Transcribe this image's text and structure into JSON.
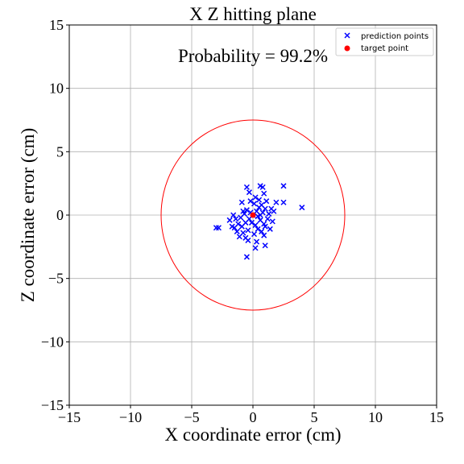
{
  "chart_data": {
    "type": "scatter",
    "title": "X Z hitting plane",
    "xlabel": "X coordinate error (cm)",
    "ylabel": "Z coordinate error (cm)",
    "xlim": [
      -15,
      15
    ],
    "ylim": [
      -15,
      15
    ],
    "xticks": [
      -15,
      -10,
      -5,
      0,
      5,
      10,
      15
    ],
    "yticks": [
      -15,
      -10,
      -5,
      0,
      5,
      10,
      15
    ],
    "xtick_labels": [
      "−15",
      "−10",
      "−5",
      "0",
      "5",
      "10",
      "15"
    ],
    "ytick_labels": [
      "−15",
      "−10",
      "−5",
      "0",
      "5",
      "10",
      "15"
    ],
    "grid": true,
    "legend_position": "top-right",
    "annotation": "Probability = 99.2%",
    "circle": {
      "center": [
        0,
        0
      ],
      "radius": 7.5,
      "color": "#ff0000"
    },
    "series": [
      {
        "name": "prediction points",
        "marker": "x",
        "color": "#0000ff",
        "points": [
          [
            2.5,
            2.3
          ],
          [
            0.6,
            2.3
          ],
          [
            0.8,
            2.2
          ],
          [
            -0.5,
            2.2
          ],
          [
            -0.3,
            1.8
          ],
          [
            0.9,
            1.7
          ],
          [
            0.2,
            1.4
          ],
          [
            0.5,
            1.2
          ],
          [
            1.1,
            1.1
          ],
          [
            -0.9,
            1.0
          ],
          [
            2.5,
            1.0
          ],
          [
            1.9,
            1.0
          ],
          [
            0.1,
            0.9
          ],
          [
            0.7,
            0.8
          ],
          [
            4.0,
            0.6
          ],
          [
            1.5,
            0.5
          ],
          [
            1.0,
            0.5
          ],
          [
            -0.5,
            0.4
          ],
          [
            0.3,
            0.3
          ],
          [
            -0.2,
            0.2
          ],
          [
            0.8,
            0.2
          ],
          [
            1.3,
            0.1
          ],
          [
            -0.7,
            0.1
          ],
          [
            0.0,
            0.0
          ],
          [
            0.4,
            -0.1
          ],
          [
            -1.0,
            -0.2
          ],
          [
            1.2,
            -0.3
          ],
          [
            -1.4,
            -0.3
          ],
          [
            -0.3,
            -0.3
          ],
          [
            0.6,
            -0.4
          ],
          [
            1.6,
            -0.5
          ],
          [
            -1.9,
            -0.4
          ],
          [
            -0.6,
            -0.6
          ],
          [
            0.9,
            -0.7
          ],
          [
            -1.2,
            -0.7
          ],
          [
            0.2,
            -0.8
          ],
          [
            1.0,
            -0.9
          ],
          [
            -0.9,
            -0.9
          ],
          [
            -1.7,
            -0.9
          ],
          [
            -2.8,
            -1.0
          ],
          [
            -3.0,
            -1.0
          ],
          [
            0.4,
            -1.1
          ],
          [
            -0.4,
            -1.2
          ],
          [
            -1.3,
            -1.3
          ],
          [
            0.7,
            -1.3
          ],
          [
            -0.8,
            -1.4
          ],
          [
            0.1,
            -1.5
          ],
          [
            -1.1,
            -1.7
          ],
          [
            -0.6,
            -1.8
          ],
          [
            -0.4,
            -2.0
          ],
          [
            0.3,
            -2.1
          ],
          [
            1.0,
            -2.4
          ],
          [
            0.2,
            -2.6
          ],
          [
            -0.5,
            -3.3
          ],
          [
            0.6,
            0.0
          ],
          [
            -0.1,
            -0.6
          ],
          [
            1.7,
            0.3
          ],
          [
            -1.5,
            -1.0
          ],
          [
            0.5,
            0.6
          ],
          [
            -0.8,
            0.3
          ],
          [
            1.4,
            -1.1
          ],
          [
            -0.2,
            1.1
          ],
          [
            0.9,
            -1.6
          ],
          [
            -1.6,
            0.0
          ]
        ]
      },
      {
        "name": "target point",
        "marker": "o",
        "color": "#ff0000",
        "points": [
          [
            0,
            0
          ]
        ]
      }
    ]
  }
}
